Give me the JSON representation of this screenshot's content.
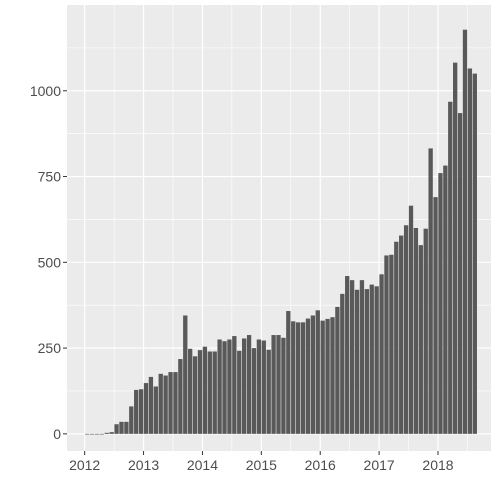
{
  "chart_data": {
    "type": "bar",
    "title": "",
    "xlabel": "",
    "ylabel": "",
    "x_ticks": [
      {
        "value": 2012,
        "label": "2012"
      },
      {
        "value": 2013,
        "label": "2013"
      },
      {
        "value": 2014,
        "label": "2014"
      },
      {
        "value": 2015,
        "label": "2015"
      },
      {
        "value": 2016,
        "label": "2016"
      },
      {
        "value": 2017,
        "label": "2017"
      },
      {
        "value": 2018,
        "label": "2018"
      }
    ],
    "y_ticks": [
      {
        "value": 0,
        "label": "0"
      },
      {
        "value": 250,
        "label": "250"
      },
      {
        "value": 500,
        "label": "500"
      },
      {
        "value": 750,
        "label": "750"
      },
      {
        "value": 1000,
        "label": "1000"
      }
    ],
    "xlim": [
      2011.7,
      2018.9
    ],
    "ylim": [
      -50,
      1250
    ],
    "grid": true,
    "bar_color": "#595959",
    "panel_color": "#ebebeb",
    "grid_color": "#ffffff",
    "start": "2012-01",
    "interval": "month",
    "values": [
      0,
      0,
      0,
      0,
      3,
      5,
      28,
      35,
      35,
      80,
      128,
      130,
      148,
      166,
      138,
      175,
      170,
      180,
      180,
      218,
      345,
      248,
      226,
      244,
      254,
      240,
      240,
      275,
      270,
      275,
      285,
      242,
      278,
      288,
      250,
      275,
      272,
      245,
      288,
      288,
      280,
      358,
      328,
      325,
      325,
      336,
      345,
      360,
      330,
      335,
      340,
      370,
      408,
      460,
      448,
      420,
      448,
      422,
      435,
      430,
      465,
      520,
      522,
      560,
      578,
      608,
      665,
      600,
      550,
      598,
      832,
      690,
      760,
      782,
      968,
      1082,
      935,
      1178,
      1065,
      1050
    ]
  }
}
